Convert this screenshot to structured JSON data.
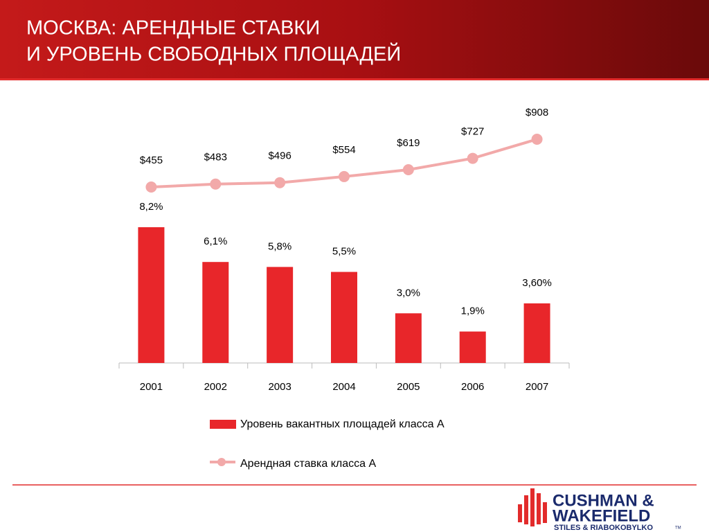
{
  "chart_data": {
    "type": "bar",
    "title": [
      "МОСКВА: АРЕНДНЫЕ СТАВКИ",
      "И УРОВЕНЬ СВОБОДНЫХ ПЛОЩАДЕЙ"
    ],
    "categories": [
      "2001",
      "2002",
      "2003",
      "2004",
      "2005",
      "2006",
      "2007"
    ],
    "series": [
      {
        "name": "Уровень вакантных площадей класса А",
        "type": "bar",
        "color": "#e8262a",
        "values": [
          8.2,
          6.1,
          5.8,
          5.5,
          3.0,
          1.9,
          3.6
        ],
        "value_labels": [
          "8,2%",
          "6,1%",
          "5,8%",
          "5,5%",
          "3,0%",
          "1,9%",
          "3,60%"
        ]
      },
      {
        "name": "Арендная ставка класса А",
        "type": "line",
        "color": "#f2a9a9",
        "values": [
          455,
          483,
          496,
          554,
          619,
          727,
          908
        ],
        "value_labels": [
          "$455",
          "$483",
          "$496",
          "$554",
          "$619",
          "$727",
          "$908"
        ]
      }
    ]
  },
  "logo": {
    "line1": "CUSHMAN &",
    "line2": "WAKEFIELD",
    "line3": "STILES & RIABOKOBYLKO",
    "tm": "TM"
  }
}
